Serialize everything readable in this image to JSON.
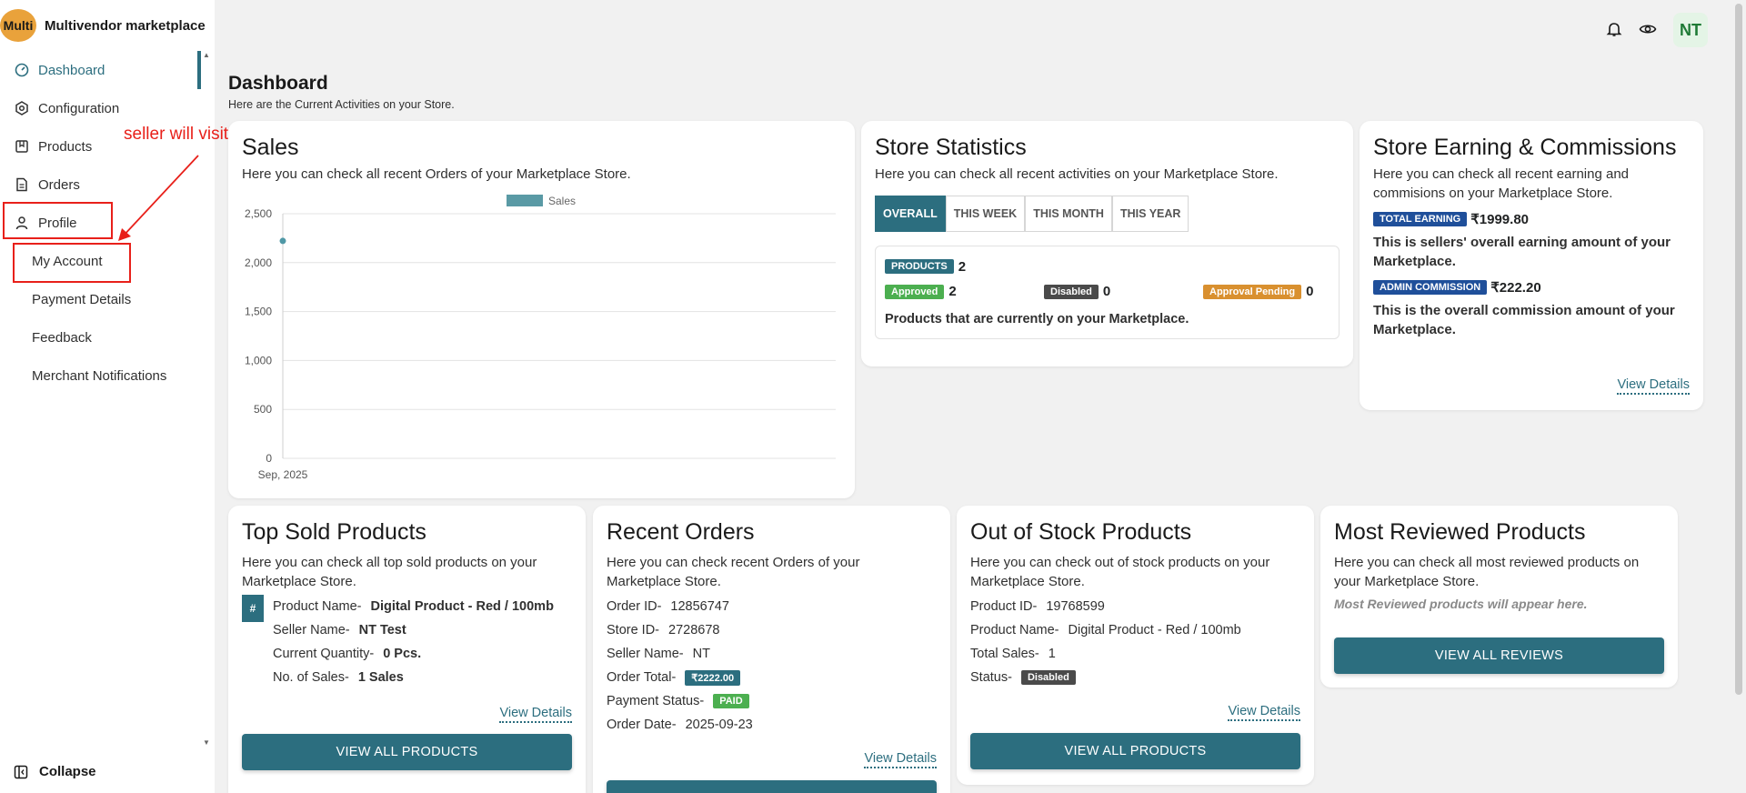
{
  "brand": {
    "logo_text": "Multi",
    "name": "Multivendor marketplace"
  },
  "sidebar": {
    "items": [
      {
        "label": "Dashboard",
        "icon": "dashboard-icon"
      },
      {
        "label": "Configuration",
        "icon": "configuration-icon"
      },
      {
        "label": "Products",
        "icon": "products-icon"
      },
      {
        "label": "Orders",
        "icon": "orders-icon"
      },
      {
        "label": "Profile",
        "icon": "profile-icon"
      }
    ],
    "sub_items": [
      {
        "label": "My Account"
      },
      {
        "label": "Payment Details"
      },
      {
        "label": "Feedback"
      },
      {
        "label": "Merchant Notifications"
      }
    ],
    "collapse_label": "Collapse"
  },
  "annotation": {
    "text": "seller will visit this section to upload banner"
  },
  "topbar": {
    "avatar_initials": "NT"
  },
  "page": {
    "title": "Dashboard",
    "subtitle": "Here are the Current Activities on your Store."
  },
  "sales": {
    "title": "Sales",
    "desc": "Here you can check all recent Orders of your Marketplace Store."
  },
  "chart_data": {
    "type": "line",
    "categories": [
      "Sep, 2025"
    ],
    "series": [
      {
        "name": "Sales",
        "values": [
          2222
        ]
      }
    ],
    "ylim": [
      0,
      2500
    ],
    "yticks": [
      "0",
      "500",
      "1,000",
      "1,500",
      "2,000",
      "2,500"
    ],
    "grid": true,
    "legend": "top"
  },
  "store_stats": {
    "title": "Store Statistics",
    "desc": "Here you can check all recent activities on your Marketplace Store.",
    "tabs": [
      "OVERALL",
      "THIS WEEK",
      "THIS MONTH",
      "THIS YEAR"
    ],
    "products_label": "PRODUCTS",
    "products_count": "2",
    "approved_label": "Approved",
    "approved_count": "2",
    "disabled_label": "Disabled",
    "disabled_count": "0",
    "pending_label": "Approval Pending",
    "pending_count": "0",
    "footer": "Products that are currently on your Marketplace."
  },
  "earnings": {
    "title": "Store Earning & Commissions",
    "desc": "Here you can check all recent earning and commisions on your Marketplace Store.",
    "total_label": "TOTAL EARNING",
    "total_value": "₹1999.80",
    "total_desc": "This is sellers' overall earning amount of your Marketplace.",
    "admin_label": "ADMIN COMMISSION",
    "admin_value": "₹222.20",
    "admin_desc": "This is the overall commission amount of your Marketplace.",
    "link": "View Details"
  },
  "top_sold": {
    "title": "Top Sold Products",
    "desc": "Here you can check all top sold products on your Marketplace Store.",
    "hash": "#",
    "rows": [
      {
        "k": "Product Name-",
        "v": "Digital Product - Red / 100mb"
      },
      {
        "k": "Seller Name-",
        "v": "NT Test"
      },
      {
        "k": "Current Quantity-",
        "v": "0 Pcs."
      },
      {
        "k": "No. of Sales-",
        "v": "1 Sales"
      }
    ],
    "link": "View Details",
    "button": "VIEW ALL PRODUCTS"
  },
  "recent_orders": {
    "title": "Recent Orders",
    "desc": "Here you can check recent Orders of your Marketplace Store.",
    "order_id_k": "Order ID-",
    "order_id_v": "12856747",
    "store_id_k": "Store ID-",
    "store_id_v": "2728678",
    "seller_k": "Seller Name-",
    "seller_v": "NT",
    "total_k": "Order Total-",
    "total_v": "₹2222.00",
    "payment_k": "Payment Status-",
    "payment_v": "PAID",
    "date_k": "Order Date-",
    "date_v": "2025-09-23",
    "link": "View Details"
  },
  "out_of_stock": {
    "title": "Out of Stock Products",
    "desc": "Here you can check out of stock products on your Marketplace Store.",
    "pid_k": "Product ID-",
    "pid_v": "19768599",
    "pname_k": "Product Name-",
    "pname_v": "Digital Product - Red / 100mb",
    "sales_k": "Total Sales-",
    "sales_v": "1",
    "status_k": "Status-",
    "status_v": "Disabled",
    "link": "View Details",
    "button": "VIEW ALL PRODUCTS"
  },
  "most_reviewed": {
    "title": "Most Reviewed Products",
    "desc": "Here you can check all most reviewed products on your Marketplace Store.",
    "empty": "Most Reviewed products will appear here.",
    "button": "VIEW ALL REVIEWS"
  }
}
